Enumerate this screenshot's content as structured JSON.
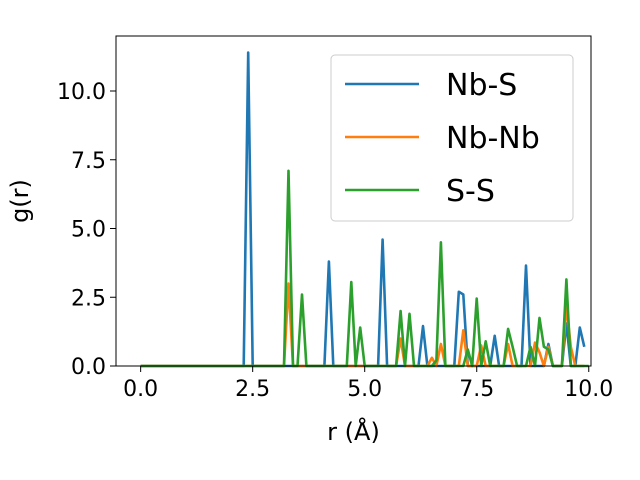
{
  "chart_data": {
    "type": "line",
    "xlabel": "r (Å)",
    "ylabel": "g(r)",
    "xlim": [
      -0.55,
      10.05
    ],
    "ylim": [
      0,
      12.0
    ],
    "xticks": [
      0.0,
      2.5,
      5.0,
      7.5,
      10.0
    ],
    "xtick_labels": [
      "0.0",
      "2.5",
      "5.0",
      "7.5",
      "10.0"
    ],
    "yticks": [
      0.0,
      2.5,
      5.0,
      7.5,
      10.0
    ],
    "ytick_labels": [
      "0.0",
      "2.5",
      "5.0",
      "7.5",
      "10.0"
    ],
    "grid": false,
    "legend_position": "top-right",
    "series": [
      {
        "name": "Nb-S",
        "color": "#1f77b4",
        "points": [
          [
            0,
            0
          ],
          [
            2.3,
            0
          ],
          [
            2.4,
            11.4
          ],
          [
            2.5,
            0
          ],
          [
            4.1,
            0
          ],
          [
            4.2,
            3.8
          ],
          [
            4.3,
            0
          ],
          [
            5.3,
            0
          ],
          [
            5.4,
            4.6
          ],
          [
            5.5,
            0
          ],
          [
            6.2,
            0
          ],
          [
            6.3,
            1.45
          ],
          [
            6.4,
            0
          ],
          [
            7.0,
            0
          ],
          [
            7.1,
            2.7
          ],
          [
            7.2,
            2.6
          ],
          [
            7.3,
            0
          ],
          [
            7.8,
            0
          ],
          [
            7.9,
            1.1
          ],
          [
            8.0,
            0
          ],
          [
            8.5,
            0
          ],
          [
            8.6,
            3.65
          ],
          [
            8.7,
            0
          ],
          [
            9.0,
            0
          ],
          [
            9.1,
            0.8
          ],
          [
            9.2,
            0
          ],
          [
            9.4,
            0
          ],
          [
            9.5,
            1.55
          ],
          [
            9.6,
            0
          ],
          [
            9.7,
            0
          ],
          [
            9.8,
            1.4
          ],
          [
            9.9,
            0.7
          ]
        ]
      },
      {
        "name": "Nb-Nb",
        "color": "#ff7f0e",
        "points": [
          [
            0,
            0
          ],
          [
            3.2,
            0
          ],
          [
            3.3,
            3.0
          ],
          [
            3.4,
            0
          ],
          [
            5.7,
            0
          ],
          [
            5.8,
            1.0
          ],
          [
            5.9,
            0
          ],
          [
            6.4,
            0
          ],
          [
            6.5,
            0.3
          ],
          [
            6.6,
            0
          ],
          [
            6.7,
            0.8
          ],
          [
            6.8,
            0
          ],
          [
            7.1,
            0
          ],
          [
            7.2,
            1.3
          ],
          [
            7.3,
            0
          ],
          [
            7.5,
            0
          ],
          [
            7.6,
            0.75
          ],
          [
            7.7,
            0
          ],
          [
            8.1,
            0
          ],
          [
            8.2,
            0.8
          ],
          [
            8.3,
            0
          ],
          [
            8.7,
            0
          ],
          [
            8.8,
            0.85
          ],
          [
            8.9,
            0.5
          ],
          [
            9.0,
            0
          ],
          [
            9.1,
            0.7
          ],
          [
            9.2,
            0
          ],
          [
            9.4,
            0
          ],
          [
            9.5,
            2.2
          ],
          [
            9.6,
            0.7
          ],
          [
            9.7,
            0
          ],
          [
            9.9,
            0
          ]
        ]
      },
      {
        "name": "S-S",
        "color": "#2ca02c",
        "points": [
          [
            0,
            0
          ],
          [
            3.2,
            0
          ],
          [
            3.3,
            7.1
          ],
          [
            3.4,
            0
          ],
          [
            3.5,
            0
          ],
          [
            3.6,
            2.6
          ],
          [
            3.7,
            0
          ],
          [
            4.6,
            0
          ],
          [
            4.7,
            3.05
          ],
          [
            4.8,
            0
          ],
          [
            4.9,
            1.4
          ],
          [
            5.0,
            0
          ],
          [
            5.7,
            0
          ],
          [
            5.8,
            2.0
          ],
          [
            5.9,
            0
          ],
          [
            6.0,
            1.9
          ],
          [
            6.1,
            0
          ],
          [
            6.5,
            0
          ],
          [
            6.6,
            0.2
          ],
          [
            6.7,
            4.5
          ],
          [
            6.8,
            0
          ],
          [
            7.2,
            0
          ],
          [
            7.3,
            0.6
          ],
          [
            7.4,
            0
          ],
          [
            7.5,
            2.45
          ],
          [
            7.6,
            0
          ],
          [
            7.7,
            0.9
          ],
          [
            7.8,
            0
          ],
          [
            8.1,
            0
          ],
          [
            8.2,
            1.35
          ],
          [
            8.3,
            0.7
          ],
          [
            8.4,
            0
          ],
          [
            8.6,
            0
          ],
          [
            8.7,
            0.7
          ],
          [
            8.8,
            0
          ],
          [
            8.9,
            1.75
          ],
          [
            9.0,
            0.7
          ],
          [
            9.1,
            0.6
          ],
          [
            9.2,
            0
          ],
          [
            9.4,
            0
          ],
          [
            9.5,
            3.15
          ],
          [
            9.6,
            0
          ],
          [
            10.0,
            0
          ]
        ]
      }
    ]
  }
}
